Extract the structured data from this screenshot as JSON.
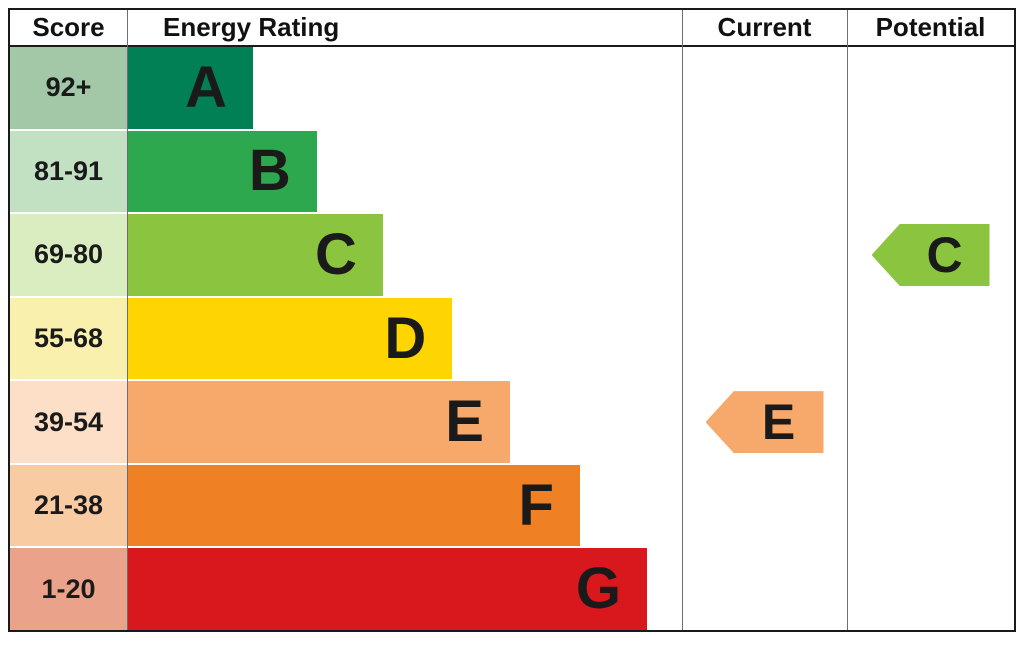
{
  "header": {
    "score": "Score",
    "energy_rating": "Energy Rating",
    "current": "Current",
    "potential": "Potential"
  },
  "chart_data": {
    "type": "bar",
    "title": "Energy Rating",
    "orientation": "horizontal",
    "legend_position": "none",
    "bands": [
      {
        "score": "92+",
        "letter": "A",
        "color": "#008054",
        "tint": "#a3c8a7",
        "width_pct": 22.7
      },
      {
        "score": "81-91",
        "letter": "B",
        "color": "#2ea84e",
        "tint": "#c2e1c2",
        "width_pct": 34.2
      },
      {
        "score": "69-80",
        "letter": "C",
        "color": "#8bc540",
        "tint": "#d9edc1",
        "width_pct": 46.1
      },
      {
        "score": "55-68",
        "letter": "D",
        "color": "#ffd500",
        "tint": "#faf0ad",
        "width_pct": 58.6
      },
      {
        "score": "39-54",
        "letter": "E",
        "color": "#f6a96b",
        "tint": "#fcdfc6",
        "width_pct": 69.0
      },
      {
        "score": "21-38",
        "letter": "F",
        "color": "#ef8023",
        "tint": "#f8cba3",
        "width_pct": 81.6
      },
      {
        "score": "1-20",
        "letter": "G",
        "color": "#d8181c",
        "tint": "#eba28b",
        "width_pct": 93.7
      }
    ],
    "current": {
      "letter": "E",
      "band": "39-54",
      "color": "#f6a96b"
    },
    "potential": {
      "letter": "C",
      "band": "69-80",
      "color": "#8bc540"
    }
  }
}
